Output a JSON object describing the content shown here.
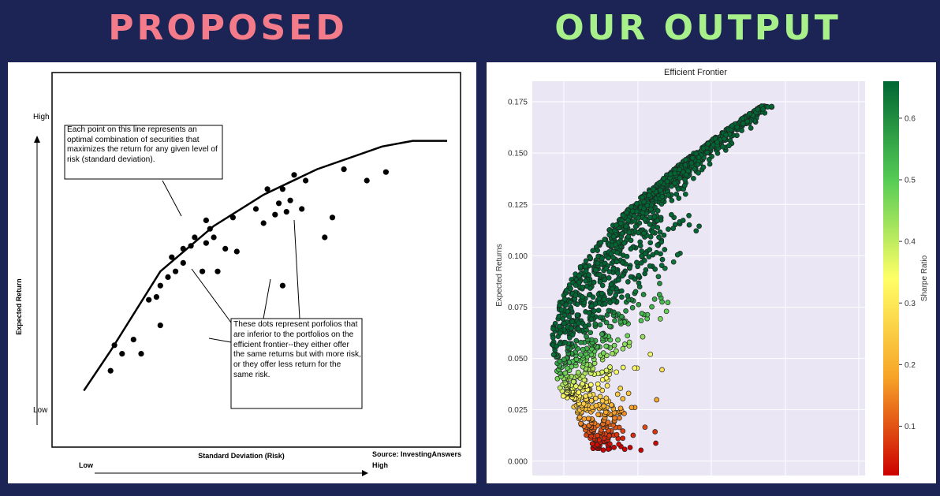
{
  "headings": {
    "left": "PROPOSED",
    "right": "OUR OUTPUT"
  },
  "colors": {
    "background": "#1c2456",
    "left_heading": "#f47c8a",
    "right_heading": "#a8f08a"
  },
  "chart_data": [
    {
      "type": "line",
      "ylabel": "Expected Return",
      "xlabel": "Standard Deviation (Risk)",
      "y_ticks": [
        "High",
        "Low"
      ],
      "x_ticks": [
        "Low",
        "High"
      ],
      "source": "Source: InvestingAnswers",
      "annotations": [
        "Each point on this line represents an optimal combination of securities that maximizes the return for any given level of risk (standard deviation).",
        "These dots represent porfolios that are inferior to the portfolios on the efficient frontier--they either offer the same returns but with more risk, or they offer less return for the same risk."
      ],
      "frontier": {
        "x": [
          0.05,
          0.12,
          0.25,
          0.39,
          0.52,
          0.66,
          0.83,
          0.91,
          1.0
        ],
        "y": [
          0.06,
          0.2,
          0.48,
          0.64,
          0.75,
          0.84,
          0.92,
          0.94,
          0.94
        ]
      },
      "portfolios": {
        "x": [
          0.12,
          0.13,
          0.15,
          0.18,
          0.2,
          0.22,
          0.24,
          0.25,
          0.25,
          0.27,
          0.28,
          0.29,
          0.31,
          0.31,
          0.33,
          0.34,
          0.36,
          0.37,
          0.37,
          0.38,
          0.39,
          0.42,
          0.44,
          0.45,
          0.5,
          0.52,
          0.53,
          0.55,
          0.56,
          0.57,
          0.58,
          0.59,
          0.6,
          0.62,
          0.63,
          0.68,
          0.7,
          0.73,
          0.79,
          0.84,
          0.4,
          0.57
        ],
        "y": [
          0.13,
          0.22,
          0.19,
          0.24,
          0.19,
          0.38,
          0.39,
          0.29,
          0.43,
          0.46,
          0.53,
          0.48,
          0.51,
          0.56,
          0.57,
          0.6,
          0.48,
          0.58,
          0.66,
          0.63,
          0.6,
          0.56,
          0.67,
          0.55,
          0.7,
          0.65,
          0.77,
          0.68,
          0.72,
          0.77,
          0.69,
          0.73,
          0.82,
          0.7,
          0.8,
          0.6,
          0.67,
          0.84,
          0.8,
          0.83,
          0.48,
          0.43
        ]
      }
    },
    {
      "type": "scatter",
      "title": "Efficient Frontier",
      "ylabel": "Expected Returns",
      "colorbar_label": "Sharpe Ratio",
      "y_ticks": [
        "0.000",
        "0.025",
        "0.050",
        "0.075",
        "0.100",
        "0.125",
        "0.150",
        "0.175"
      ],
      "ylim": [
        -0.007,
        0.185
      ],
      "colorbar_ticks": [
        "0.1",
        "0.2",
        "0.3",
        "0.4",
        "0.5",
        "0.6"
      ],
      "colorbar_range": [
        0.02,
        0.66
      ],
      "x_ticks_labeled": false,
      "grid": true,
      "colormap": [
        "#cc0000",
        "#ffff66",
        "#006633"
      ],
      "points": "random portfolios forming a bullet-shaped cloud; returns 0.005–0.175"
    }
  ]
}
